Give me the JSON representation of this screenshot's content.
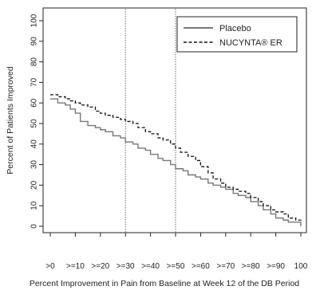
{
  "chart_data": {
    "type": "line",
    "title": "",
    "xlabel": "Percent Improvement in Pain from Baseline at Week 12 of the DB Period",
    "ylabel": "Percent of Patients Improved",
    "x_tick_labels": [
      ">0",
      ">=10",
      ">=20",
      ">=30",
      ">=40",
      ">=50",
      ">=60",
      ">=70",
      ">=80",
      ">=90",
      "100"
    ],
    "x_tick_values": [
      0,
      10,
      20,
      30,
      40,
      50,
      60,
      70,
      80,
      90,
      100
    ],
    "y_tick_labels": [
      "0",
      "10",
      "20",
      "30",
      "40",
      "50",
      "60",
      "70",
      "80",
      "90",
      "100"
    ],
    "y_tick_values": [
      0,
      10,
      20,
      30,
      40,
      50,
      60,
      70,
      80,
      90,
      100
    ],
    "xlim": [
      0,
      100
    ],
    "ylim": [
      0,
      100
    ],
    "reference_lines_x": [
      30,
      50
    ],
    "grid": false,
    "legend_position": "top-right",
    "series": [
      {
        "name": "Placebo",
        "style": "solid",
        "color": "#777777",
        "x": [
          0,
          3,
          6,
          8,
          10,
          12,
          15,
          18,
          20,
          22,
          25,
          28,
          30,
          33,
          35,
          38,
          40,
          43,
          45,
          48,
          50,
          53,
          55,
          58,
          60,
          63,
          65,
          68,
          70,
          73,
          75,
          78,
          80,
          83,
          85,
          88,
          90,
          93,
          95,
          98,
          100
        ],
        "y": [
          62,
          60,
          59,
          57,
          55,
          51,
          49,
          48,
          47,
          46,
          44,
          43,
          41,
          40,
          38,
          37,
          35,
          33,
          32,
          30,
          28,
          27,
          25,
          24,
          23,
          21,
          20,
          19,
          18,
          16,
          15,
          14,
          12,
          10,
          8,
          6,
          4,
          3,
          2,
          2,
          0
        ]
      },
      {
        "name": "NUCYNTA® ER",
        "style": "dashed",
        "color": "#111111",
        "x": [
          0,
          3,
          6,
          8,
          10,
          12,
          15,
          18,
          20,
          22,
          25,
          28,
          30,
          33,
          35,
          38,
          40,
          43,
          45,
          48,
          50,
          52,
          55,
          58,
          60,
          63,
          65,
          68,
          70,
          73,
          75,
          78,
          80,
          83,
          85,
          88,
          90,
          93,
          95,
          98,
          100
        ],
        "y": [
          64,
          63,
          62,
          61,
          60,
          59,
          58,
          56,
          55,
          54,
          53,
          52,
          51,
          50,
          48,
          46,
          45,
          43,
          42,
          40,
          38,
          36,
          34,
          32,
          29,
          26,
          23,
          21,
          19,
          18,
          17,
          16,
          14,
          12,
          10,
          8,
          7,
          6,
          4,
          3,
          2
        ]
      }
    ]
  }
}
